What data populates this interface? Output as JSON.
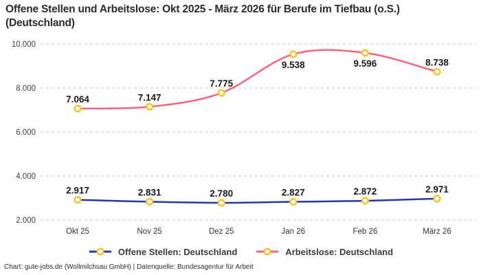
{
  "header": {
    "title": "Offene Stellen und Arbeitslose: Okt 2025 - März 2026 für Berufe im Tiefbau (o.S.) (Deutschland)",
    "title_lines": [
      "Offene Stellen und Arbeitslose: Okt 2025 - März 2026 für Berufe im Tiefbau (o.S.)",
      "(Deutschland)"
    ]
  },
  "footer": {
    "credit": "Chart: gute-jobs.de (Wollmilchsau GmbH) | Datenquelle: Bundesagentur für Arbeit"
  },
  "colors": {
    "open_positions_line": "#24399b",
    "unemployed_line": "#f9647b",
    "marker_stroke": "#fdc229",
    "marker_fill": "#ffffff",
    "grid": "#c9c9c9",
    "axis_text": "#3f3f3f",
    "value_label_text": "#1a1a1a"
  },
  "legend": {
    "items": [
      {
        "label": "Offene Stellen: Deutschland",
        "color": "#24399b"
      },
      {
        "label": "Arbeitslose: Deutschland",
        "color": "#f9647b"
      }
    ]
  },
  "chart_data": {
    "type": "line",
    "title": "Offene Stellen und Arbeitslose: Okt 2025 - März 2026 für Berufe im Tiefbau (o.S.) (Deutschland)",
    "categories": [
      "Okt 25",
      "Nov 25",
      "Dez 25",
      "Jan 26",
      "Feb 26",
      "März 26"
    ],
    "series": [
      {
        "name": "Offene Stellen: Deutschland",
        "color": "#24399b",
        "values": [
          2917,
          2831,
          2780,
          2827,
          2872,
          2971
        ],
        "point_labels": [
          "2.917",
          "2.831",
          "2.780",
          "2.827",
          "2.872",
          "2.971"
        ],
        "label_positions": [
          "above",
          "above",
          "above",
          "above",
          "above",
          "above"
        ]
      },
      {
        "name": "Arbeitslose: Deutschland",
        "color": "#f9647b",
        "values": [
          7064,
          7147,
          7775,
          9538,
          9596,
          8738
        ],
        "point_labels": [
          "7.064",
          "7.147",
          "7.775",
          "9.538",
          "9.596",
          "8.738"
        ],
        "label_positions": [
          "above",
          "above",
          "above",
          "below",
          "below",
          "above"
        ]
      }
    ],
    "ylim": [
      2000,
      10000
    ],
    "yticks": [
      {
        "value": 2000,
        "label": "2.000"
      },
      {
        "value": 4000,
        "label": "4.000"
      },
      {
        "value": 6000,
        "label": "6.000"
      },
      {
        "value": 8000,
        "label": "8.000"
      },
      {
        "value": 10000,
        "label": "10.000"
      }
    ],
    "grid": "horizontal-dashed",
    "legend_position": "bottom",
    "marker": {
      "shape": "circle",
      "fill": "#ffffff",
      "stroke": "#fdc229"
    }
  }
}
